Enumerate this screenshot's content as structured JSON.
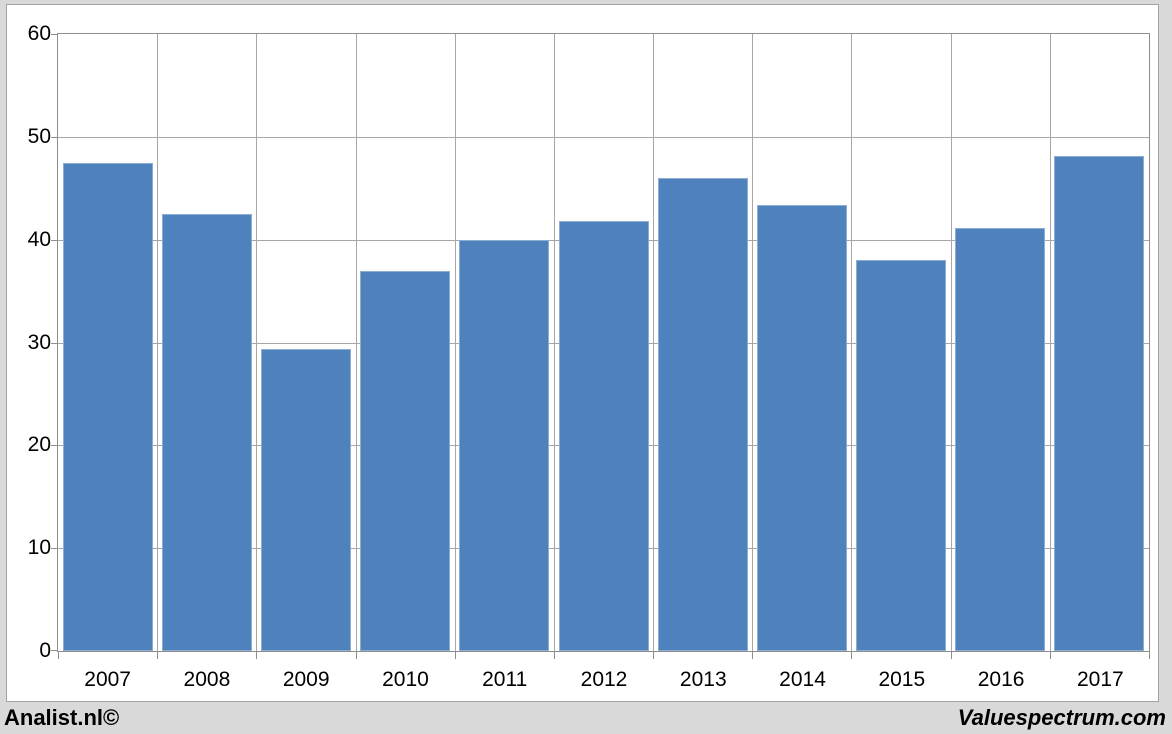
{
  "chart_data": {
    "type": "bar",
    "categories": [
      "2007",
      "2008",
      "2009",
      "2010",
      "2011",
      "2012",
      "2013",
      "2014",
      "2015",
      "2016",
      "2017"
    ],
    "values": [
      47.5,
      42.5,
      29.4,
      37.0,
      40.0,
      41.8,
      46.0,
      43.4,
      38.0,
      41.1,
      48.1
    ],
    "title": "",
    "xlabel": "",
    "ylabel": "",
    "ylim": [
      0,
      60
    ],
    "yticks": [
      0,
      10,
      20,
      30,
      40,
      50,
      60
    ],
    "grid": true,
    "legend": "none",
    "bar_color": "#4f81bd",
    "background_color": "#d9d9d9",
    "plot_background_color": "#ffffff"
  },
  "footer": {
    "left": "Analist.nl©",
    "right": "Valuespectrum.com"
  }
}
